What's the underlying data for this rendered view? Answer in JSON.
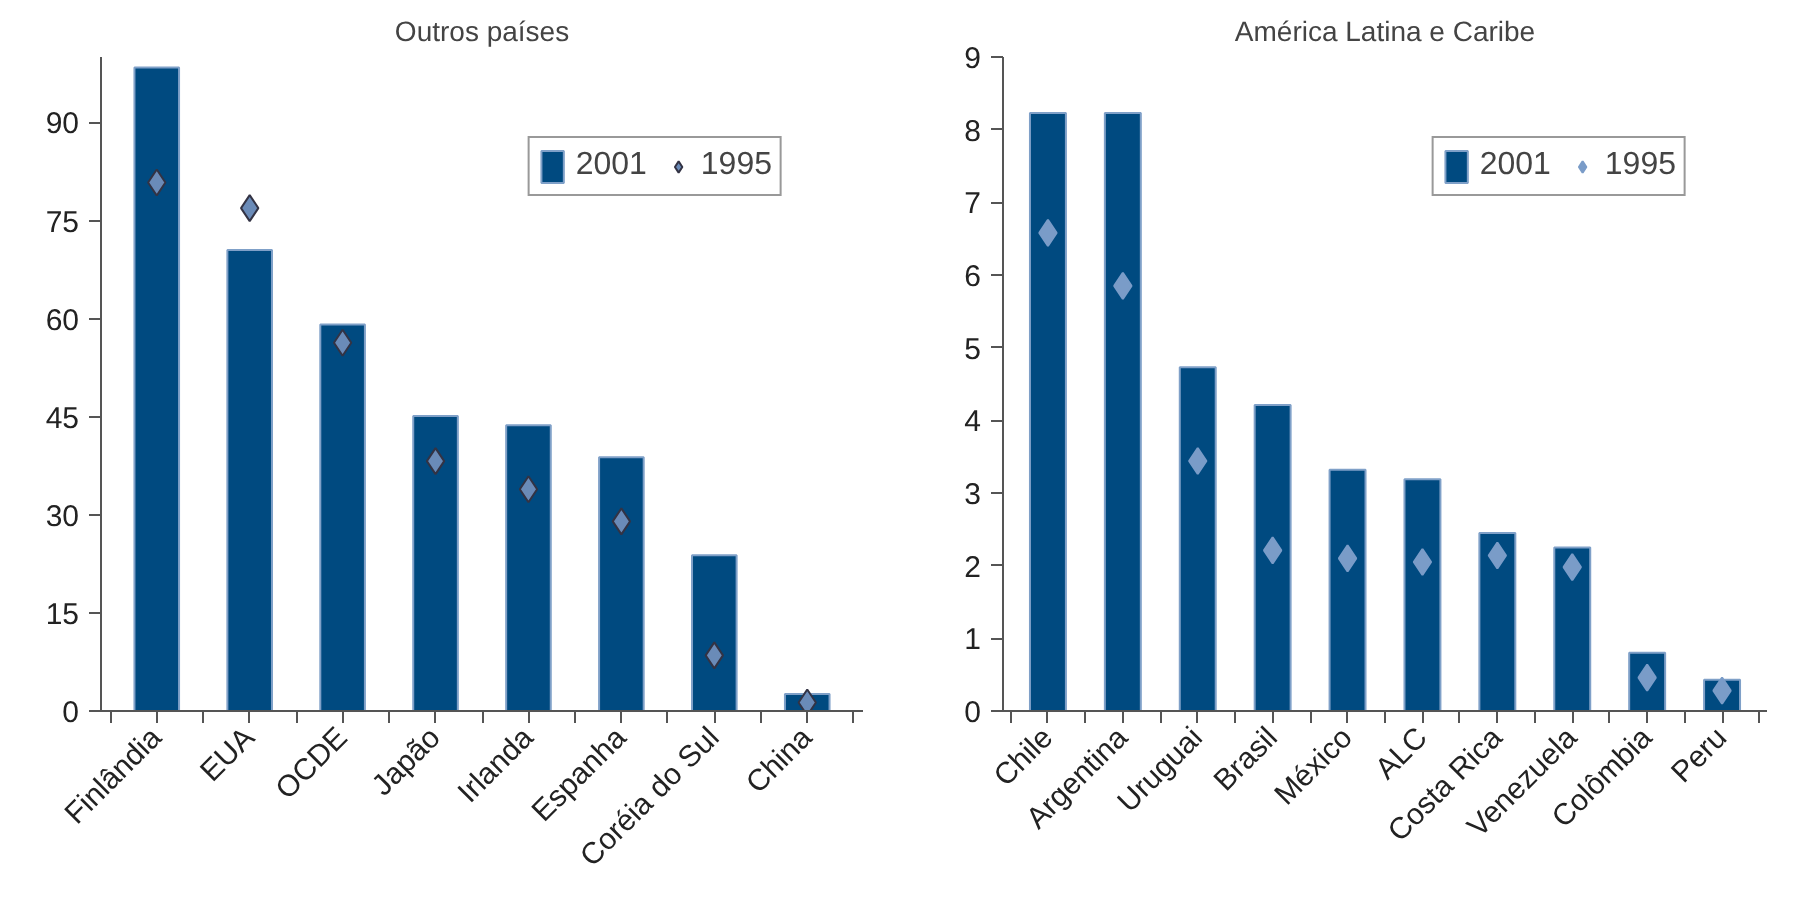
{
  "chart_data": [
    {
      "type": "bar",
      "title": "Outros países",
      "categories": [
        "Finlândia",
        "EUA",
        "OCDE",
        "Japão",
        "Irlanda",
        "Espanha",
        "Coréia do Sul",
        "China"
      ],
      "series": [
        {
          "name": "2001",
          "color": "#004a80",
          "values": [
            98.4,
            70.5,
            59.1,
            45.1,
            43.7,
            38.8,
            23.8,
            2.6
          ]
        },
        {
          "name": "1995",
          "type": "scatter",
          "color": "#6a8bb8",
          "values": [
            80.8,
            76.9,
            56.3,
            38.2,
            33.9,
            29.0,
            8.5,
            1.3
          ]
        }
      ],
      "ylim": [
        0,
        100
      ],
      "yticks": [
        0,
        15,
        30,
        45,
        60,
        75,
        90
      ],
      "legend": "top right",
      "grid": false,
      "marker": "diamond"
    },
    {
      "type": "bar",
      "title": "América Latina e Caribe",
      "categories": [
        "Chile",
        "Argentina",
        "Uruguai",
        "Brasil",
        "México",
        "ALC",
        "Costa Rica",
        "Venezuela",
        "Colômbia",
        "Peru"
      ],
      "series": [
        {
          "name": "2001",
          "color": "#004a80",
          "values": [
            8.23,
            8.23,
            4.73,
            4.21,
            3.32,
            3.19,
            2.45,
            2.25,
            0.8,
            0.43
          ]
        },
        {
          "name": "1995",
          "type": "scatter",
          "color": "#7a9cc8",
          "values": [
            6.58,
            5.85,
            3.44,
            2.21,
            2.1,
            2.05,
            2.14,
            1.98,
            0.46,
            0.28
          ]
        }
      ],
      "ylim": [
        0,
        9
      ],
      "yticks": [
        0,
        1,
        2,
        3,
        4,
        5,
        6,
        7,
        8,
        9
      ],
      "legend": "top right",
      "grid": false,
      "marker": "diamond"
    }
  ]
}
